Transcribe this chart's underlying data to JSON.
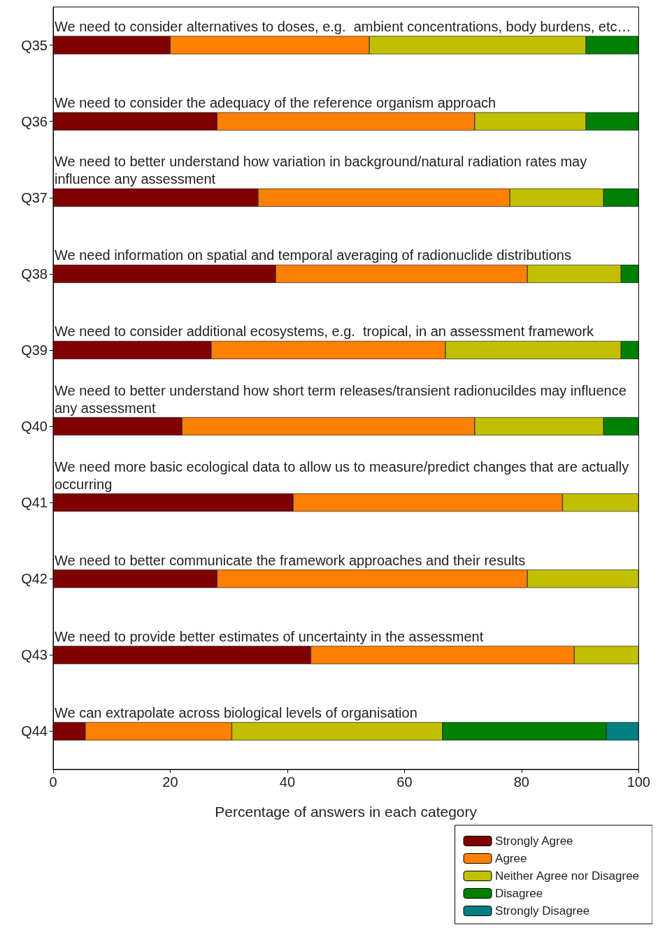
{
  "chart_data": {
    "type": "bar",
    "orientation": "horizontal",
    "stacked": true,
    "xlabel": "Percentage of answers in each category",
    "categories": [
      "Q35",
      "Q36",
      "Q37",
      "Q38",
      "Q39",
      "Q40",
      "Q41",
      "Q42",
      "Q43",
      "Q44"
    ],
    "series": [
      {
        "name": "Strongly Agree",
        "color": "#800000",
        "values": [
          20,
          28,
          35,
          38,
          27,
          22,
          41,
          28,
          44,
          5.5
        ]
      },
      {
        "name": "Agree",
        "color": "#ff8000",
        "values": [
          34,
          44,
          43,
          43,
          40,
          50,
          46,
          53,
          45,
          25
        ]
      },
      {
        "name": "Neither Agree nor Disagree",
        "color": "#c0c000",
        "values": [
          37,
          19,
          16,
          16,
          30,
          22,
          13,
          19,
          11,
          36
        ]
      },
      {
        "name": "Disagree",
        "color": "#008000",
        "values": [
          9,
          9,
          6,
          3,
          3,
          6,
          null,
          null,
          null,
          28
        ]
      },
      {
        "name": "Strongly Disagree",
        "color": "#008080",
        "values": [
          null,
          null,
          null,
          null,
          null,
          null,
          null,
          null,
          null,
          5.5
        ]
      }
    ],
    "xlim": [
      0,
      100
    ],
    "xticks": [
      0,
      20,
      40,
      60,
      80,
      100
    ],
    "grid": false,
    "legend": "bottom right",
    "annotations": [
      "We need to consider alternatives to doses, e.g.  ambient concentrations, body burdens, etc…",
      "We need to consider the adequacy of the reference organism approach",
      "We need to better understand how variation in background/natural radiation rates may influence any assessment",
      "We need information on spatial and temporal averaging of radionuclide distributions",
      "We need to consider additional ecosystems, e.g.  tropical, in an assessment framework",
      "We need to better understand how short term releases/transient radionucildes may influence any assessment",
      "We need more basic ecological data to allow us to measure/predict changes that are actually occurring",
      "We need to better communicate the framework approaches and their results",
      "We need to provide better estimates of uncertainty in the assessment",
      "We can extrapolate across biological levels of organisation"
    ]
  }
}
